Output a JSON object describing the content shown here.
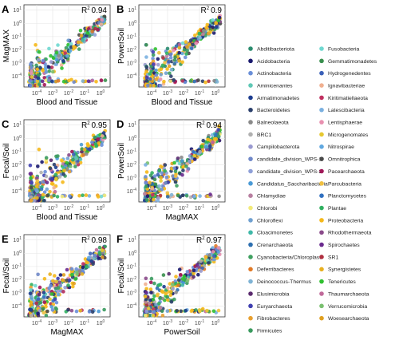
{
  "chart_data": [
    {
      "panel": "A",
      "type": "scatter",
      "xlabel": "Blood and Tissue",
      "ylabel": "MagMAX",
      "r2_text": "0.94",
      "xlim": [
        -4.8,
        0.6
      ],
      "ylim": [
        -4.8,
        1.4
      ],
      "x_ticks": [
        -4,
        -3,
        -2,
        -1,
        0
      ],
      "y_ticks": [
        -4,
        -3,
        -2,
        -1,
        0,
        1
      ]
    },
    {
      "panel": "B",
      "type": "scatter",
      "xlabel": "Blood and Tissue",
      "ylabel": "PowerSoil",
      "r2_text": "0.9",
      "xlim": [
        -4.8,
        0.6
      ],
      "ylim": [
        -4.8,
        1.4
      ],
      "x_ticks": [
        -4,
        -3,
        -2,
        -1,
        0
      ],
      "y_ticks": [
        -4,
        -3,
        -2,
        -1,
        0,
        1
      ]
    },
    {
      "panel": "C",
      "type": "scatter",
      "xlabel": "Blood and Tissue",
      "ylabel": "Fecal/Soil",
      "r2_text": "0.95",
      "xlim": [
        -4.8,
        0.6
      ],
      "ylim": [
        -4.8,
        1.4
      ],
      "x_ticks": [
        -4,
        -3,
        -2,
        -1,
        0
      ],
      "y_ticks": [
        -4,
        -3,
        -2,
        -1,
        0,
        1
      ]
    },
    {
      "panel": "D",
      "type": "scatter",
      "xlabel": "MagMAX",
      "ylabel": "PowerSoil",
      "r2_text": "0.94",
      "xlim": [
        -4.8,
        0.6
      ],
      "ylim": [
        -4.8,
        1.4
      ],
      "x_ticks": [
        -4,
        -3,
        -2,
        -1,
        0
      ],
      "y_ticks": [
        -4,
        -3,
        -2,
        -1,
        0,
        1
      ]
    },
    {
      "panel": "E",
      "type": "scatter",
      "xlabel": "MagMAX",
      "ylabel": "Fecal/Soil",
      "r2_text": "0.98",
      "xlim": [
        -4.8,
        0.6
      ],
      "ylim": [
        -4.8,
        1.4
      ],
      "x_ticks": [
        -4,
        -3,
        -2,
        -1,
        0
      ],
      "y_ticks": [
        -4,
        -3,
        -2,
        -1,
        0,
        1
      ]
    },
    {
      "panel": "F",
      "type": "scatter",
      "xlabel": "PowerSoil",
      "ylabel": "Fecal/Soil",
      "r2_text": "0.97",
      "xlim": [
        -4.8,
        0.6
      ],
      "ylim": [
        -4.8,
        1.4
      ],
      "x_ticks": [
        -4,
        -3,
        -2,
        -1,
        0
      ],
      "y_ticks": [
        -4,
        -3,
        -2,
        -1,
        0,
        1
      ]
    }
  ],
  "scale_note": {
    "x": "log10",
    "y": "log10",
    "tick_base": "10"
  },
  "legend": [
    {
      "name": "Abditibacteriota",
      "color": "#2a8c6e"
    },
    {
      "name": "Acidobacteria",
      "color": "#1a1a6e"
    },
    {
      "name": "Actinobacteria",
      "color": "#6a8fd8"
    },
    {
      "name": "Aminicenantes",
      "color": "#5fc8b5"
    },
    {
      "name": "Armatimonadetes",
      "color": "#1d3d8f"
    },
    {
      "name": "Bacteroidetes",
      "color": "#2a3f6b"
    },
    {
      "name": "Balneolaeota",
      "color": "#8a8a8a"
    },
    {
      "name": "BRC1",
      "color": "#b0b0b0"
    },
    {
      "name": "Campilobacterota",
      "color": "#9a9ad0"
    },
    {
      "name": "candidate_division_WPS-1",
      "color": "#7088c8"
    },
    {
      "name": "candidate_division_WPS-2",
      "color": "#8fa0d8"
    },
    {
      "name": "Candidatus_Saccharibacteria",
      "color": "#4a9ad6"
    },
    {
      "name": "Chlamydiae",
      "color": "#b87fa0"
    },
    {
      "name": "Chlorobi",
      "color": "#f2ea7a"
    },
    {
      "name": "Chloroflexi",
      "color": "#6fa0d0"
    },
    {
      "name": "Cloacimonetes",
      "color": "#3fb8a8"
    },
    {
      "name": "Crenarchaeota",
      "color": "#2d6fb0"
    },
    {
      "name": "Cyanobacteria/Chloroplast",
      "color": "#3fa060"
    },
    {
      "name": "Deferribacteres",
      "color": "#e07a28"
    },
    {
      "name": "Deinococcus-Thermus",
      "color": "#7fb3d5"
    },
    {
      "name": "Elusimicrobia",
      "color": "#5a2a6e"
    },
    {
      "name": "Euryarchaeota",
      "color": "#4040b0"
    },
    {
      "name": "Fibrobacteres",
      "color": "#e8a030"
    },
    {
      "name": "Firmicutes",
      "color": "#3a9a5e"
    },
    {
      "name": "Fusobacteria",
      "color": "#6fd8d0"
    },
    {
      "name": "Gemmatimonadetes",
      "color": "#3a8f4e"
    },
    {
      "name": "Hydrogenedentes",
      "color": "#3a60b8"
    },
    {
      "name": "Ignavibacteriae",
      "color": "#f0b090"
    },
    {
      "name": "Kiritimatiellaeota",
      "color": "#c03060"
    },
    {
      "name": "Latescibacteria",
      "color": "#7ab0e0"
    },
    {
      "name": "Lentisphaerae",
      "color": "#e890b0"
    },
    {
      "name": "Microgenomates",
      "color": "#e6c830"
    },
    {
      "name": "Nitrospirae",
      "color": "#60a8e0"
    },
    {
      "name": "Omnitrophica",
      "color": "#4a4a4a"
    },
    {
      "name": "Pacearchaeota",
      "color": "#a01858"
    },
    {
      "name": "Parcubacteria",
      "color": "#f0c040"
    },
    {
      "name": "Planctomycetes",
      "color": "#3070c0"
    },
    {
      "name": "Plantae",
      "color": "#30b060"
    },
    {
      "name": "Proteobacteria",
      "color": "#f5b81a"
    },
    {
      "name": "Rhodothermaeota",
      "color": "#8a4a8a"
    },
    {
      "name": "Spirochaetes",
      "color": "#6a2a8e"
    },
    {
      "name": "SR1",
      "color": "#b03040"
    },
    {
      "name": "Synergistetes",
      "color": "#e8b020"
    },
    {
      "name": "Tenericutes",
      "color": "#30c030"
    },
    {
      "name": "Thaumarchaeota",
      "color": "#c06a9a"
    },
    {
      "name": "Verrucomicrobia",
      "color": "#7ac070"
    },
    {
      "name": "Woesearchaeota",
      "color": "#e0a020"
    }
  ]
}
